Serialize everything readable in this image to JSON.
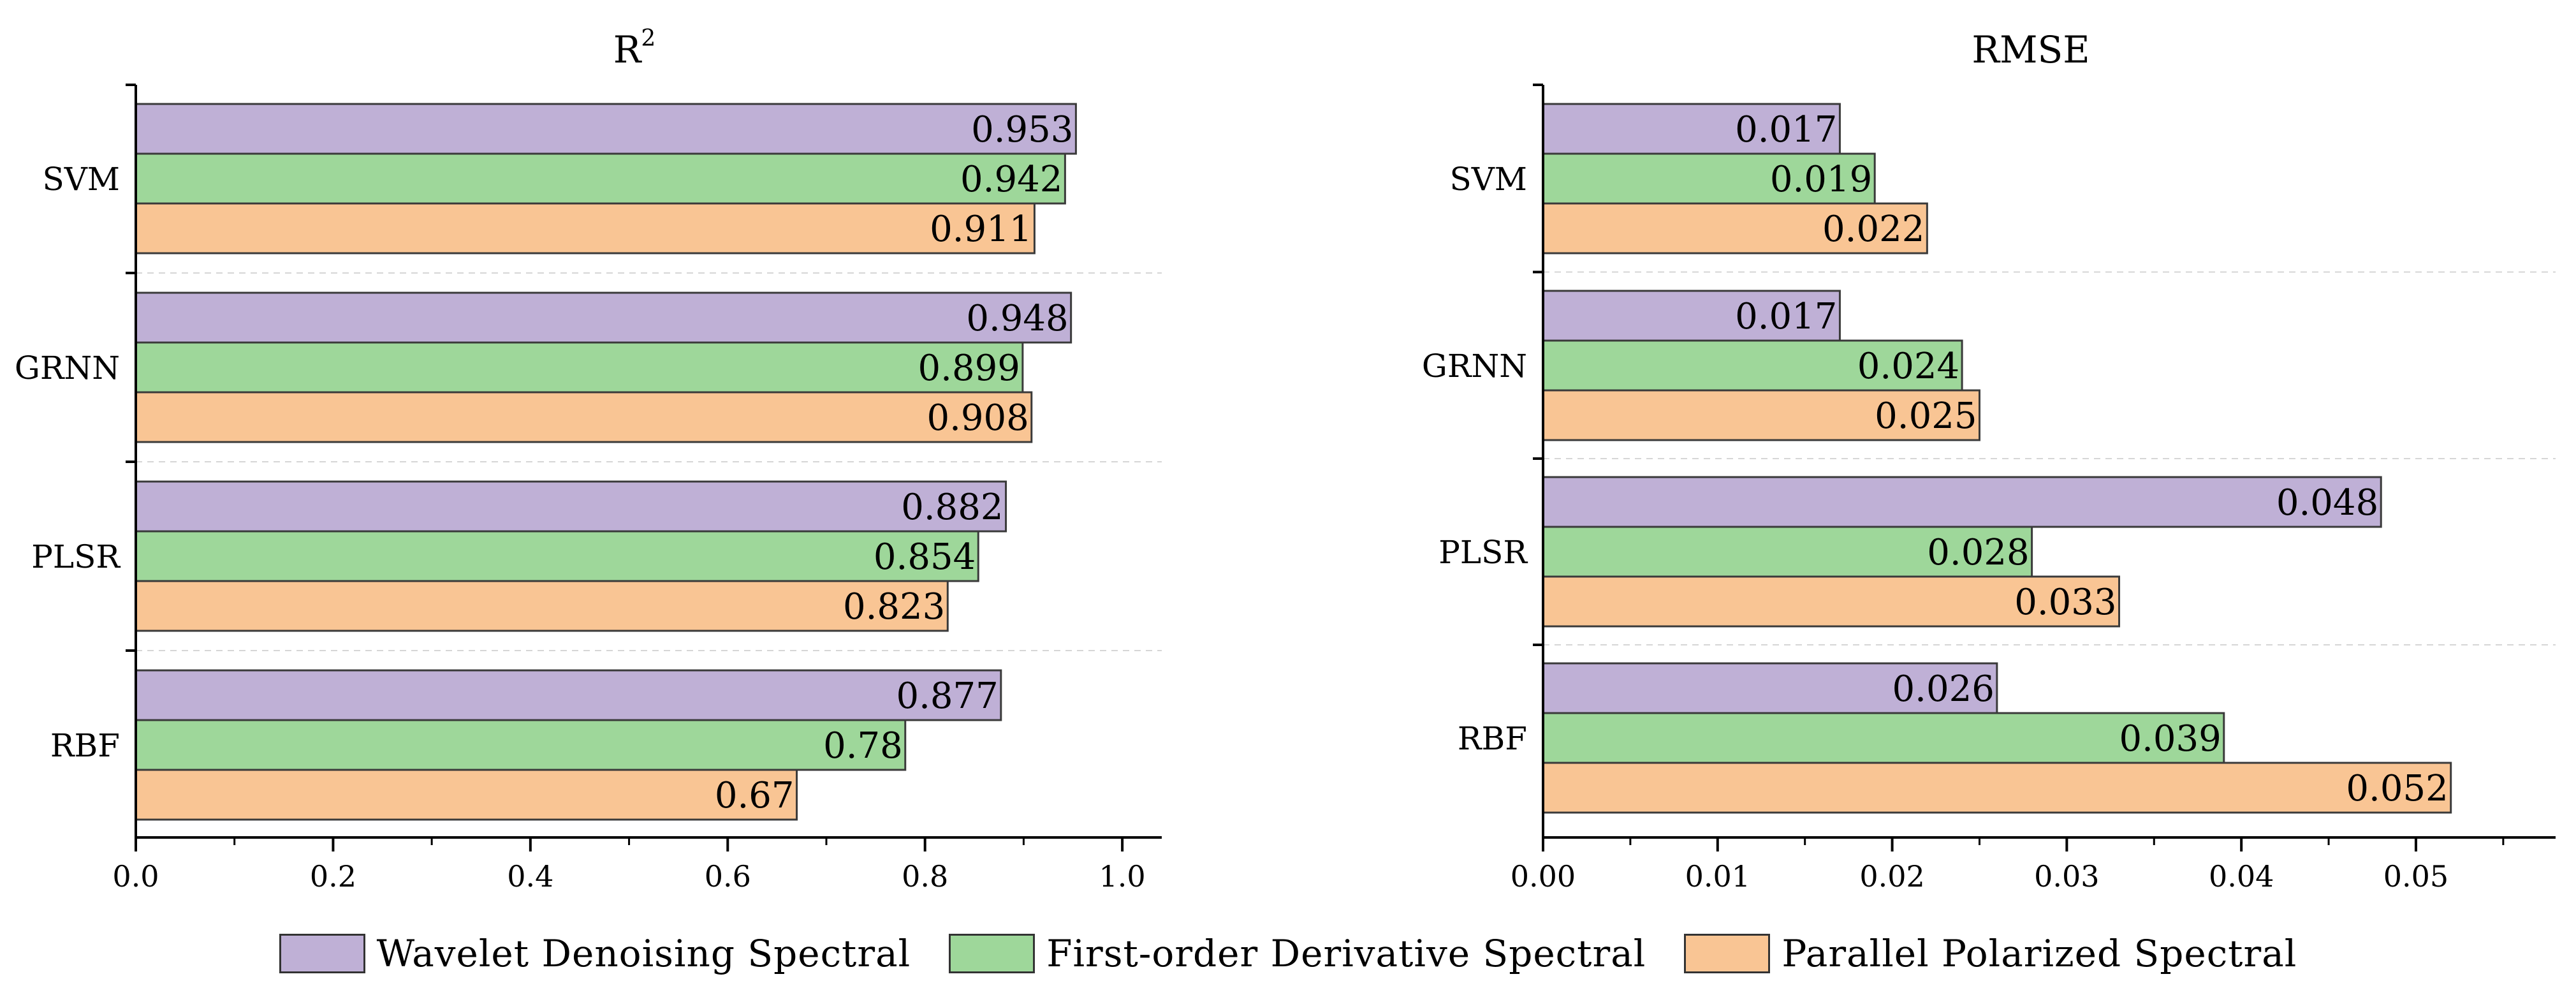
{
  "chart_data": [
    {
      "type": "bar",
      "orientation": "horizontal",
      "title": "R",
      "title_superscript": "2",
      "categories": [
        "SVM",
        "GRNN",
        "PLSR",
        "RBF"
      ],
      "series": [
        {
          "name": "Wavelet Denoising Spectral",
          "color": "#bfb0d6",
          "values": [
            0.953,
            0.948,
            0.882,
            0.877
          ],
          "labels": [
            "0.953",
            "0.948",
            "0.882",
            "0.877"
          ]
        },
        {
          "name": "First-order Derivative Spectral",
          "color": "#9ed79a",
          "values": [
            0.942,
            0.899,
            0.854,
            0.78
          ],
          "labels": [
            "0.942",
            "0.899",
            "0.854",
            "0.78"
          ]
        },
        {
          "name": "Parallel Polarized Spectral",
          "color": "#f9c594",
          "values": [
            0.911,
            0.908,
            0.823,
            0.67
          ],
          "labels": [
            "0.911",
            "0.908",
            "0.823",
            "0.67"
          ]
        }
      ],
      "xlim": [
        0,
        1.04
      ],
      "xticks": [
        0,
        0.2,
        0.4,
        0.6,
        0.8,
        1.0
      ],
      "xtick_labels": [
        "0.0",
        "0.2",
        "0.4",
        "0.6",
        "0.8",
        "1.0"
      ],
      "grid": "dashed horizontal separators between categories"
    },
    {
      "type": "bar",
      "orientation": "horizontal",
      "title": "RMSE",
      "categories": [
        "SVM",
        "GRNN",
        "PLSR",
        "RBF"
      ],
      "series": [
        {
          "name": "Wavelet Denoising Spectral",
          "color": "#bfb0d6",
          "values": [
            0.017,
            0.017,
            0.048,
            0.026
          ],
          "labels": [
            "0.017",
            "0.017",
            "0.048",
            "0.026"
          ]
        },
        {
          "name": "First-order Derivative Spectral",
          "color": "#9ed79a",
          "values": [
            0.019,
            0.024,
            0.028,
            0.039
          ],
          "labels": [
            "0.019",
            "0.024",
            "0.028",
            "0.039"
          ]
        },
        {
          "name": "Parallel Polarized Spectral",
          "color": "#f9c594",
          "values": [
            0.022,
            0.025,
            0.033,
            0.052
          ],
          "labels": [
            "0.022",
            "0.025",
            "0.033",
            "0.052"
          ]
        }
      ],
      "xlim": [
        0,
        0.058
      ],
      "xticks": [
        0,
        0.01,
        0.02,
        0.03,
        0.04,
        0.05
      ],
      "xtick_labels": [
        "0.00",
        "0.01",
        "0.02",
        "0.03",
        "0.04",
        "0.05"
      ],
      "grid": "dashed horizontal separators between categories"
    }
  ],
  "legend": {
    "placement": "bottom-center",
    "items": [
      {
        "label": "Wavelet Denoising Spectral",
        "color": "#bfb0d6"
      },
      {
        "label": "First-order Derivative Spectral",
        "color": "#9ed79a"
      },
      {
        "label": "Parallel Polarized Spectral",
        "color": "#f9c594"
      }
    ]
  }
}
